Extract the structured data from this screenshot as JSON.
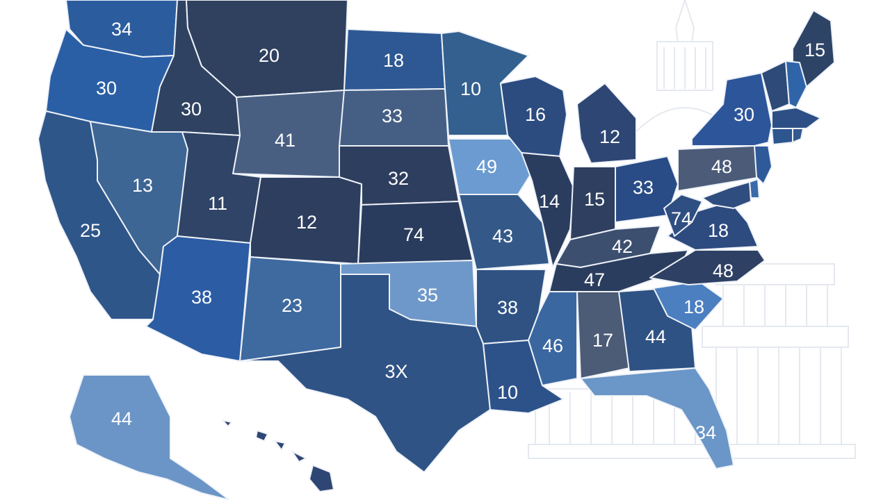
{
  "map": {
    "type": "choropleth",
    "region": "United States",
    "color_scale": [
      "#6e98c9",
      "#31608f",
      "#2d4f7e",
      "#2a3f60"
    ],
    "states": [
      {
        "id": "WA",
        "label": "34",
        "color": "#2b5c9e"
      },
      {
        "id": "OR",
        "label": "30",
        "color": "#2a5fa6"
      },
      {
        "id": "CA",
        "label": "25",
        "color": "#2f5689"
      },
      {
        "id": "ID",
        "label": "30",
        "color": "#2f4262"
      },
      {
        "id": "NV",
        "label": "13",
        "color": "#3e6694"
      },
      {
        "id": "MT",
        "label": "20",
        "color": "#2f415f"
      },
      {
        "id": "WY",
        "label": "41",
        "color": "#495f82"
      },
      {
        "id": "UT",
        "label": "11",
        "color": "#2f4466"
      },
      {
        "id": "AZ",
        "label": "38",
        "color": "#2c5ca3"
      },
      {
        "id": "CO",
        "label": "12",
        "color": "#2d3e5f"
      },
      {
        "id": "NM",
        "label": "23",
        "color": "#3e6a9f"
      },
      {
        "id": "ND",
        "label": "18",
        "color": "#2d5893"
      },
      {
        "id": "SD",
        "label": "33",
        "color": "#455f84"
      },
      {
        "id": "NE",
        "label": "32",
        "color": "#2e3e5e"
      },
      {
        "id": "KS",
        "label": "74",
        "color": "#2a3c5d"
      },
      {
        "id": "OK",
        "label": "35",
        "color": "#6e98c9"
      },
      {
        "id": "TX",
        "label": "3X",
        "color": "#2f5385"
      },
      {
        "id": "MN",
        "label": "10",
        "color": "#33608f"
      },
      {
        "id": "IA",
        "label": "49",
        "color": "#6b9bd0"
      },
      {
        "id": "MO",
        "label": "43",
        "color": "#345989"
      },
      {
        "id": "AR",
        "label": "38",
        "color": "#2f5283"
      },
      {
        "id": "LA",
        "label": "10",
        "color": "#2d528a"
      },
      {
        "id": "WI",
        "label": "16",
        "color": "#2c4c80"
      },
      {
        "id": "IL",
        "label": "14",
        "color": "#2b3d5e"
      },
      {
        "id": "MI",
        "label": "12",
        "color": "#2e4674"
      },
      {
        "id": "IN",
        "label": "15",
        "color": "#2e3f5f"
      },
      {
        "id": "OH",
        "label": "33",
        "color": "#294c86"
      },
      {
        "id": "KY",
        "label": "42",
        "color": "#3c4f6f"
      },
      {
        "id": "TN",
        "label": "47",
        "color": "#2b3d5e"
      },
      {
        "id": "MS",
        "label": "46",
        "color": "#3a67a0"
      },
      {
        "id": "AL",
        "label": "17",
        "color": "#4c5b76"
      },
      {
        "id": "GA",
        "label": "44",
        "color": "#2e5283"
      },
      {
        "id": "FL",
        "label": "34",
        "color": "#6a96c8"
      },
      {
        "id": "SC",
        "label": "18",
        "color": "#4b7fc0"
      },
      {
        "id": "NC",
        "label": "48",
        "color": "#2e4064"
      },
      {
        "id": "VA",
        "label": "18",
        "color": "#2e4b80"
      },
      {
        "id": "WV",
        "label": "74",
        "color": "#2f4f82"
      },
      {
        "id": "PA",
        "label": "48",
        "color": "#4b5b78"
      },
      {
        "id": "NY",
        "label": "30",
        "color": "#2d559a"
      },
      {
        "id": "ME",
        "label": "15",
        "color": "#2e4467"
      },
      {
        "id": "AK",
        "label": "44",
        "color": "#6b95c6"
      },
      {
        "id": "HI",
        "label": "",
        "color": "#2e4673"
      },
      {
        "id": "VT",
        "label": "",
        "color": "#2d4a78"
      },
      {
        "id": "NH",
        "label": "",
        "color": "#3064a8"
      },
      {
        "id": "MA",
        "label": "",
        "color": "#2e4f86"
      },
      {
        "id": "CT",
        "label": "",
        "color": "#2d568f"
      },
      {
        "id": "RI",
        "label": "",
        "color": "#355a90"
      },
      {
        "id": "NJ",
        "label": "",
        "color": "#2e5a9a"
      },
      {
        "id": "DE",
        "label": "",
        "color": "#3a6aa8"
      },
      {
        "id": "MD",
        "label": "",
        "color": "#2f4e7f"
      }
    ]
  }
}
